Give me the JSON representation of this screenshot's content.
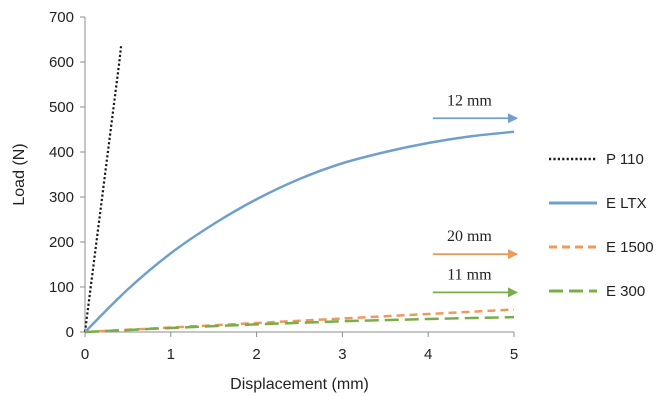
{
  "chart_data": {
    "type": "line",
    "title": "",
    "xlabel": "Displacement (mm)",
    "ylabel": "Load (N)",
    "xlim": [
      0,
      5
    ],
    "ylim": [
      0,
      700
    ],
    "x_ticks": [
      0,
      1,
      2,
      3,
      4,
      5
    ],
    "y_ticks": [
      0,
      100,
      200,
      300,
      400,
      500,
      600,
      700
    ],
    "grid": false,
    "legend_position": "right",
    "series": [
      {
        "name": "P 110",
        "style": "dotted",
        "color": "#1a1a1a",
        "x": [
          0,
          0.1,
          0.2,
          0.3,
          0.4,
          0.42
        ],
        "y": [
          0,
          150,
          300,
          450,
          600,
          635
        ]
      },
      {
        "name": "E LTX",
        "style": "solid",
        "color": "#6fa0cc",
        "x": [
          0,
          0.5,
          1,
          1.5,
          2,
          2.5,
          3,
          3.5,
          4,
          4.5,
          5
        ],
        "y": [
          0,
          95,
          175,
          240,
          295,
          340,
          375,
          400,
          420,
          435,
          445
        ]
      },
      {
        "name": "E 1500",
        "style": "dashed",
        "color": "#ee9a5c",
        "x": [
          0,
          1,
          2,
          3,
          4,
          5
        ],
        "y": [
          0,
          10,
          20,
          30,
          40,
          50
        ]
      },
      {
        "name": "E 300",
        "style": "longdash",
        "color": "#78ad48",
        "x": [
          0,
          1,
          2,
          3,
          4,
          5
        ],
        "y": [
          0,
          9,
          17,
          24,
          29,
          33
        ]
      }
    ],
    "annotations": [
      {
        "text": "12 mm",
        "color": "#6fa0cc",
        "x1": 4.1,
        "x2": 5.0,
        "y": 475
      },
      {
        "text": "20 mm",
        "color": "#ee9a5c",
        "x1": 4.1,
        "x2": 5.0,
        "y": 173
      },
      {
        "text": "11 mm",
        "color": "#78ad48",
        "x1": 4.1,
        "x2": 5.0,
        "y": 88
      }
    ]
  }
}
